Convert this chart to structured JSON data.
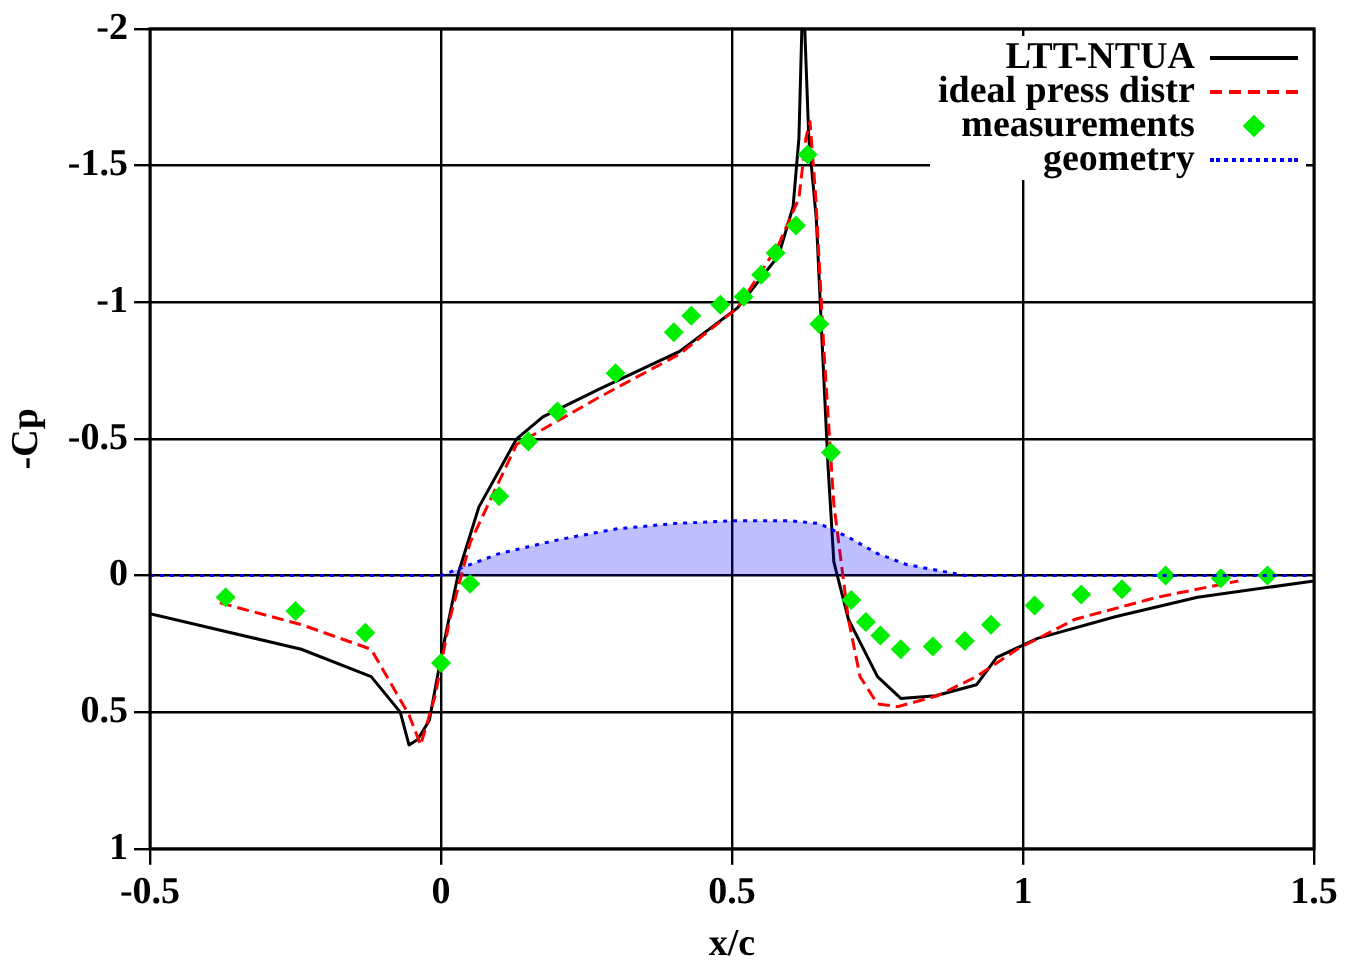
{
  "chart_data": {
    "type": "line",
    "xlabel": "x/c",
    "ylabel": "-Cp",
    "xlim": [
      -0.5,
      1.5
    ],
    "xticks": [
      -0.5,
      0,
      0.5,
      1,
      1.5
    ],
    "ylim": [
      1,
      -2
    ],
    "yticks": [
      -2,
      -1.5,
      -1,
      -0.5,
      0,
      0.5,
      1
    ],
    "grid": true,
    "legend": "top right",
    "series": [
      {
        "name": "LTT-NTUA",
        "color": "#000000",
        "line_style": "solid",
        "marker": "none",
        "x": [
          -0.5,
          -0.24,
          -0.12,
          -0.07,
          -0.055,
          -0.04,
          -0.02,
          0,
          0.03,
          0.065,
          0.13,
          0.175,
          0.27,
          0.41,
          0.51,
          0.58,
          0.605,
          0.615,
          0.62,
          0.625,
          0.632,
          0.645,
          0.654,
          0.665,
          0.675,
          0.7,
          0.75,
          0.79,
          0.85,
          0.92,
          0.955,
          1.025,
          1.16,
          1.3,
          1.5
        ],
        "values": [
          0.14,
          0.27,
          0.37,
          0.5,
          0.62,
          0.6,
          0.53,
          0.3,
          -0.01,
          -0.25,
          -0.5,
          -0.58,
          -0.68,
          -0.82,
          -0.98,
          -1.17,
          -1.35,
          -1.6,
          -2.0,
          -2.0,
          -1.6,
          -1.3,
          -0.89,
          -0.4,
          -0.05,
          0.16,
          0.37,
          0.45,
          0.44,
          0.4,
          0.3,
          0.23,
          0.15,
          0.08,
          0.02
        ]
      },
      {
        "name": "ideal press distr",
        "color": "#ff0000",
        "line_style": "dashed",
        "marker": "none",
        "x": [
          -0.38,
          -0.24,
          -0.12,
          -0.055,
          -0.035,
          -0.01,
          0.015,
          0.05,
          0.13,
          0.27,
          0.41,
          0.51,
          0.58,
          0.615,
          0.627,
          0.634,
          0.644,
          0.658,
          0.675,
          0.7,
          0.72,
          0.75,
          0.785,
          0.853,
          0.92,
          0.99,
          1.09,
          1.23,
          1.37
        ],
        "values": [
          0.1,
          0.18,
          0.27,
          0.51,
          0.62,
          0.44,
          0.16,
          -0.12,
          -0.48,
          -0.65,
          -0.81,
          -0.98,
          -1.21,
          -1.38,
          -1.6,
          -1.66,
          -1.38,
          -0.82,
          -0.26,
          0.16,
          0.37,
          0.47,
          0.48,
          0.44,
          0.37,
          0.27,
          0.16,
          0.08,
          0.02
        ]
      },
      {
        "name": "measurements",
        "type": "scatter",
        "color": "#00ee00",
        "marker": "diamond",
        "x": [
          -0.37,
          -0.25,
          -0.13,
          0.0,
          0.05,
          0.1,
          0.15,
          0.2,
          0.3,
          0.4,
          0.43,
          0.48,
          0.52,
          0.55,
          0.575,
          0.61,
          0.63,
          0.65,
          0.67,
          0.705,
          0.73,
          0.755,
          0.79,
          0.845,
          0.9,
          0.945,
          1.02,
          1.1,
          1.17,
          1.245,
          1.34,
          1.42
        ],
        "values": [
          0.08,
          0.13,
          0.21,
          0.32,
          0.03,
          -0.29,
          -0.49,
          -0.6,
          -0.74,
          -0.89,
          -0.95,
          -0.99,
          -1.02,
          -1.1,
          -1.18,
          -1.28,
          -1.54,
          -0.92,
          -0.45,
          0.09,
          0.17,
          0.22,
          0.27,
          0.26,
          0.24,
          0.18,
          0.11,
          0.07,
          0.05,
          0.0,
          0.01,
          0.0
        ]
      },
      {
        "name": "geometry",
        "type": "area",
        "color": "#0000ff",
        "line_style": "dotted",
        "marker": "none",
        "x": [
          -0.5,
          0,
          0.05,
          0.1,
          0.2,
          0.3,
          0.4,
          0.5,
          0.6,
          0.65,
          0.7,
          0.75,
          0.8,
          0.85,
          0.9,
          1.5
        ],
        "values": [
          0,
          0,
          -0.04,
          -0.08,
          -0.13,
          -0.17,
          -0.19,
          -0.2,
          -0.2,
          -0.19,
          -0.14,
          -0.08,
          -0.04,
          -0.02,
          0,
          0
        ]
      }
    ]
  }
}
